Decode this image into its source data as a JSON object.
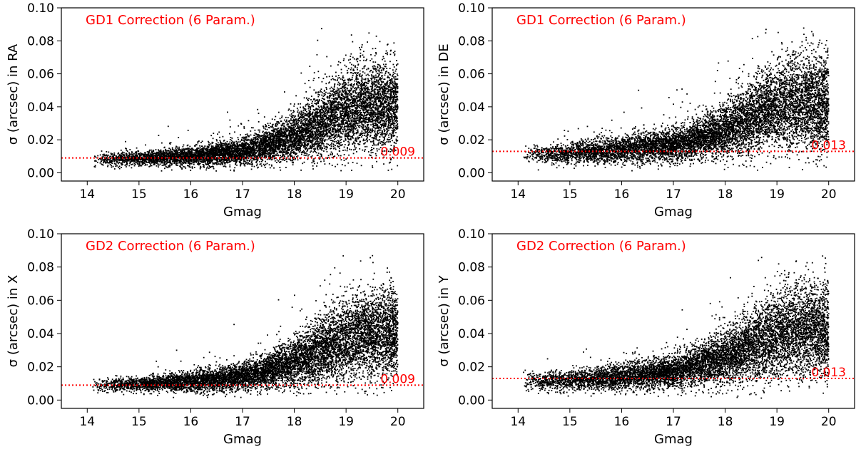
{
  "chart_data": [
    {
      "type": "scatter",
      "title": "GD1 Correction (6 Param.)",
      "xlabel": "Gmag",
      "ylabel": "σ (arcsec) in RA",
      "xlim": [
        13.5,
        20.5
      ],
      "ylim": [
        -0.005,
        0.1
      ],
      "xticks": [
        14,
        15,
        16,
        17,
        18,
        19,
        20
      ],
      "yticks": [
        "0.00",
        "0.02",
        "0.04",
        "0.06",
        "0.08",
        "0.10"
      ],
      "reference_line": {
        "y": 0.009,
        "label": "0.009",
        "style": "dotted",
        "color": "#ff0000"
      },
      "grid": false,
      "marker_color": "#000000",
      "trend": {
        "x": [
          14.1,
          15,
          16,
          17,
          17.5,
          18,
          18.5,
          19,
          19.5,
          19.9
        ],
        "median": [
          0.008,
          0.0085,
          0.01,
          0.013,
          0.017,
          0.022,
          0.03,
          0.038,
          0.04,
          0.04
        ],
        "spread": [
          0.002,
          0.002,
          0.003,
          0.004,
          0.005,
          0.007,
          0.01,
          0.012,
          0.013,
          0.013
        ]
      }
    },
    {
      "type": "scatter",
      "title": "GD1 Correction (6 Param.)",
      "xlabel": "Gmag",
      "ylabel": "σ (arcsec) in DE",
      "xlim": [
        13.5,
        20.5
      ],
      "ylim": [
        -0.005,
        0.1
      ],
      "xticks": [
        14,
        15,
        16,
        17,
        18,
        19,
        20
      ],
      "yticks": [
        "0.00",
        "0.02",
        "0.04",
        "0.06",
        "0.08",
        "0.10"
      ],
      "reference_line": {
        "y": 0.013,
        "label": "0.013",
        "style": "dotted",
        "color": "#ff0000"
      },
      "grid": false,
      "marker_color": "#000000",
      "trend": {
        "x": [
          14.1,
          15,
          16,
          17,
          17.5,
          18,
          18.5,
          19,
          19.5,
          19.9
        ],
        "median": [
          0.011,
          0.012,
          0.014,
          0.017,
          0.021,
          0.026,
          0.033,
          0.04,
          0.042,
          0.042
        ],
        "spread": [
          0.003,
          0.003,
          0.004,
          0.005,
          0.006,
          0.008,
          0.011,
          0.013,
          0.014,
          0.014
        ]
      }
    },
    {
      "type": "scatter",
      "title": "GD2 Correction (6 Param.)",
      "xlabel": "Gmag",
      "ylabel": "σ (arcsec) in X",
      "xlim": [
        13.5,
        20.5
      ],
      "ylim": [
        -0.005,
        0.1
      ],
      "xticks": [
        14,
        15,
        16,
        17,
        18,
        19,
        20
      ],
      "yticks": [
        "0.00",
        "0.02",
        "0.04",
        "0.06",
        "0.08",
        "0.10"
      ],
      "reference_line": {
        "y": 0.009,
        "label": "0.009",
        "style": "dotted",
        "color": "#ff0000"
      },
      "grid": false,
      "marker_color": "#000000",
      "trend": {
        "x": [
          14.1,
          15,
          16,
          17,
          17.5,
          18,
          18.5,
          19,
          19.5,
          19.9
        ],
        "median": [
          0.009,
          0.0095,
          0.011,
          0.014,
          0.018,
          0.023,
          0.03,
          0.037,
          0.04,
          0.04
        ],
        "spread": [
          0.002,
          0.002,
          0.003,
          0.004,
          0.005,
          0.007,
          0.01,
          0.012,
          0.013,
          0.013
        ]
      }
    },
    {
      "type": "scatter",
      "title": "GD2 Correction (6 Param.)",
      "xlabel": "Gmag",
      "ylabel": "σ (arcsec) in Y",
      "xlim": [
        13.5,
        20.5
      ],
      "ylim": [
        -0.005,
        0.1
      ],
      "xticks": [
        14,
        15,
        16,
        17,
        18,
        19,
        20
      ],
      "yticks": [
        "0.00",
        "0.02",
        "0.04",
        "0.06",
        "0.08",
        "0.10"
      ],
      "reference_line": {
        "y": 0.013,
        "label": "0.013",
        "style": "dotted",
        "color": "#ff0000"
      },
      "grid": false,
      "marker_color": "#000000",
      "trend": {
        "x": [
          14.1,
          15,
          16,
          17,
          17.5,
          18,
          18.5,
          19,
          19.5,
          19.9
        ],
        "median": [
          0.011,
          0.012,
          0.014,
          0.017,
          0.021,
          0.026,
          0.032,
          0.039,
          0.042,
          0.042
        ],
        "spread": [
          0.003,
          0.003,
          0.004,
          0.005,
          0.006,
          0.008,
          0.011,
          0.013,
          0.014,
          0.014
        ]
      }
    }
  ]
}
